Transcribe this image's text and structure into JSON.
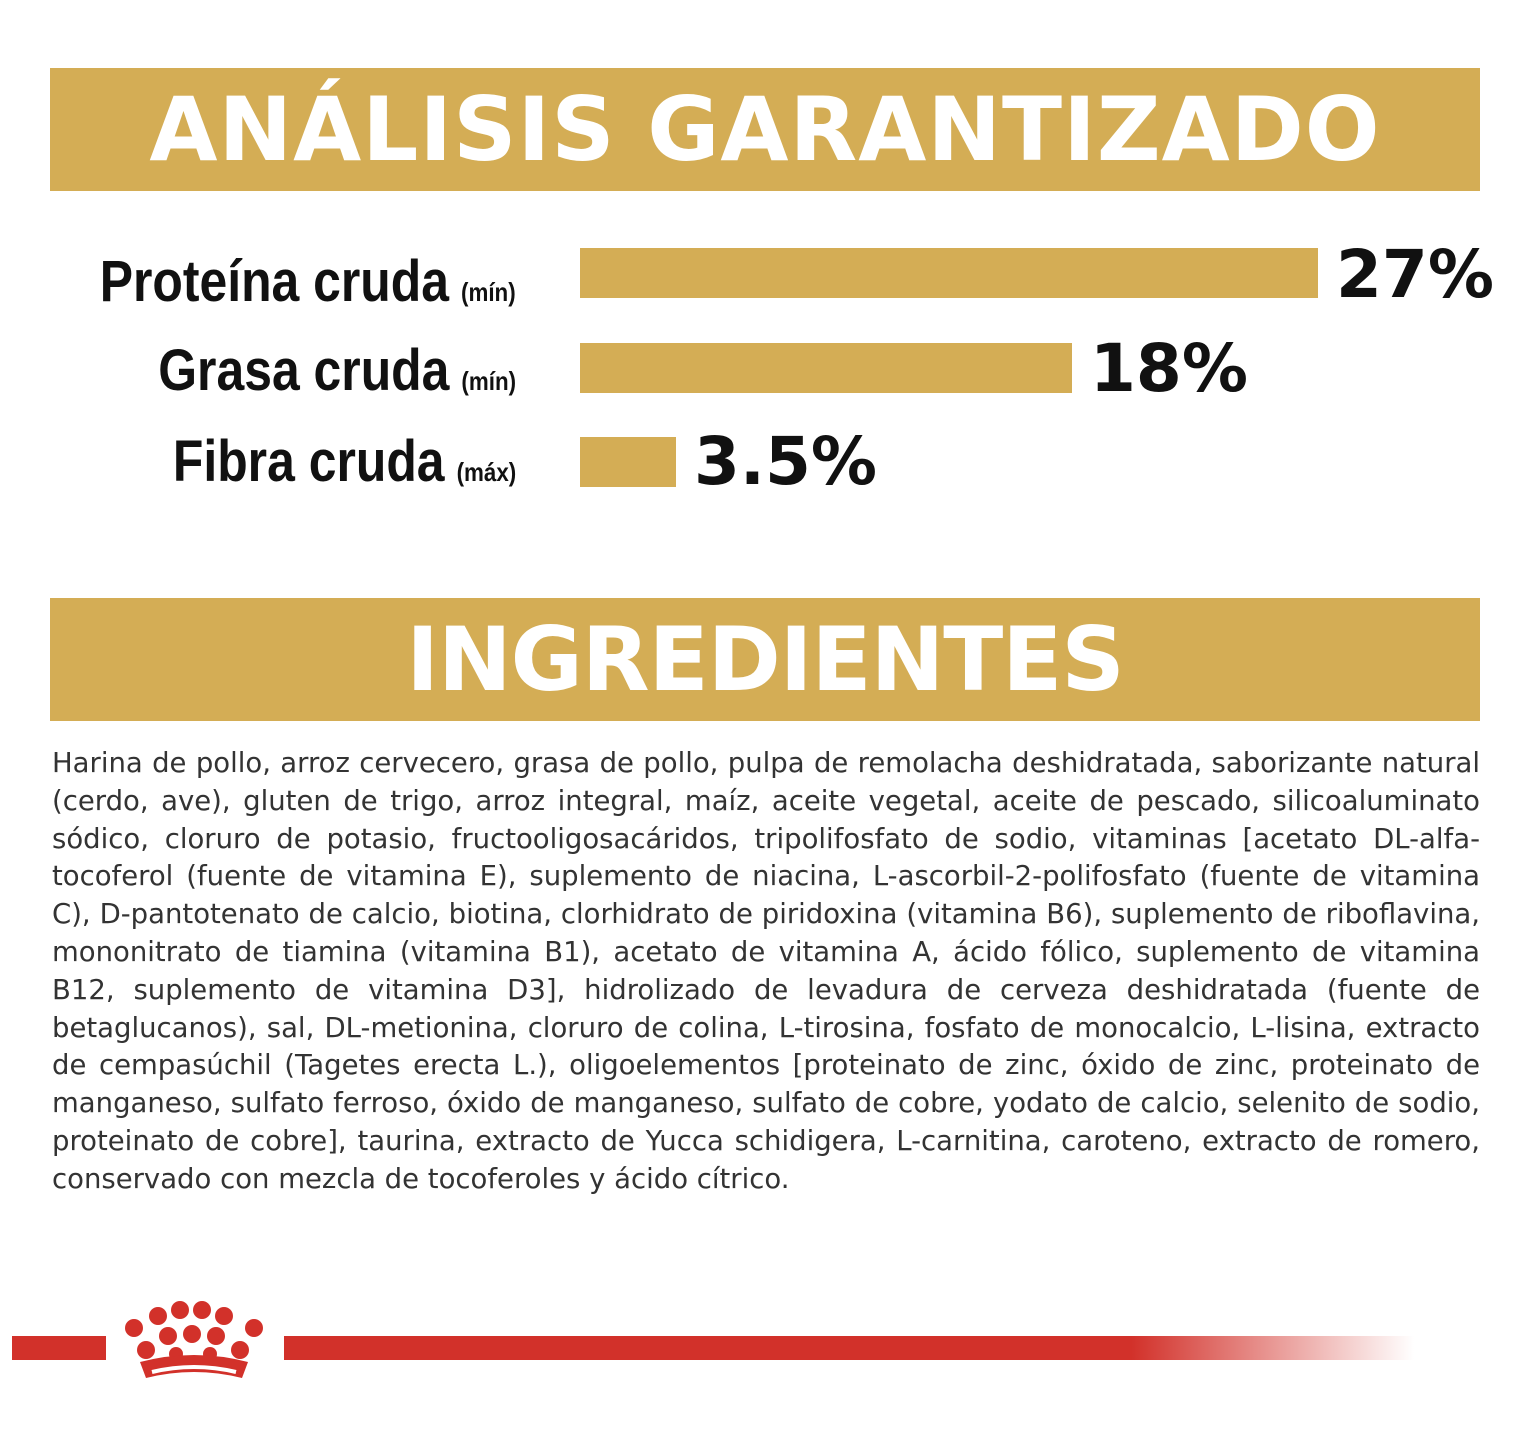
{
  "analysis": {
    "title": "ANÁLISIS GARANTIZADO",
    "bar_color": "#d4ad55",
    "nutrients": [
      {
        "name": "Proteína cruda",
        "qualifier": "(mín)",
        "value_text": "27%",
        "value": 27
      },
      {
        "name": "Grasa cruda",
        "qualifier": "(mín)",
        "value_text": "18%",
        "value": 18
      },
      {
        "name": "Fibra cruda",
        "qualifier": "(máx)",
        "value_text": "3.5%",
        "value": 3.5
      }
    ]
  },
  "ingredients": {
    "title": "INGREDIENTES",
    "text": "Harina de pollo, arroz cervecero, grasa de pollo, pulpa de remolacha deshidratada, saborizante natural (cerdo, ave), gluten de trigo, arroz integral, maíz, aceite vegetal, aceite de pescado, silicoaluminato sódico, cloruro de potasio, fructooligosacáridos, tripolifosfato de sodio, vitaminas [acetato DL-alfa-tocoferol (fuente de vitamina E), suplemento de niacina, L-ascorbil-2-polifosfato (fuente de vitamina C), D-pantotenato de calcio, biotina, clorhidrato de piridoxina (vitamina B6), suplemento de riboflavina, mononitrato de tiamina (vitamina B1), acetato de vitamina A, ácido fólico, suplemento de vitamina B12, suplemento de vitamina D3], hidrolizado de levadura de cerveza deshidratada (fuente de betaglucanos), sal, DL-metionina, cloruro de colina, L-tirosina, fosfato de monocalcio, L-lisina, extracto de cempasúchil (Tagetes erecta L.), oligoelementos [proteinato de zinc, óxido de zinc, proteinato de manganeso, sulfato ferroso, óxido de manganeso, sulfato de cobre, yodato de calcio, selenito de sodio, proteinato de cobre], taurina, extracto de Yucca schidigera, L-carnitina, caroteno, extracto de romero, conservado con mezcla de tocoferoles y ácido cítrico."
  },
  "footer": {
    "logo_icon": "crown-logo-icon",
    "accent_color": "#d2312a"
  }
}
